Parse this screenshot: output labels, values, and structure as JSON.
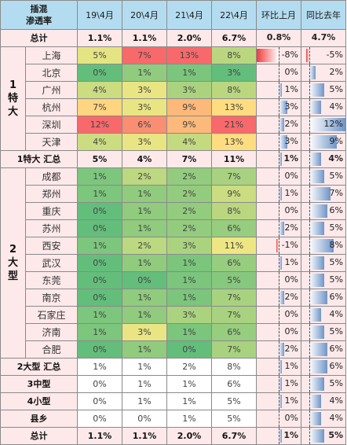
{
  "header": {
    "title_line1": "插混",
    "title_line2": "渗透率",
    "columns": [
      "19\\4月",
      "20\\4月",
      "21\\4月",
      "22\\4月",
      "环比上月",
      "同比去年"
    ]
  },
  "rows": [
    {
      "group": "",
      "label": "总计",
      "kind": "total",
      "values": [
        "1.1%",
        "1.1%",
        "2.0%",
        "6.7%"
      ],
      "mom": "0.8%",
      "yoy": "4.7%",
      "mom_num": 0.8,
      "yoy_num": 4.7
    },
    {
      "group": "1特大",
      "label": "上海",
      "kind": "city",
      "values": [
        "5%",
        "7%",
        "13%",
        "8%"
      ],
      "mom": "-8%",
      "yoy": "-5%",
      "mom_num": -8,
      "yoy_num": -5
    },
    {
      "group": "1特大",
      "label": "北京",
      "kind": "city",
      "values": [
        "0%",
        "1%",
        "1%",
        "3%"
      ],
      "mom": "0%",
      "yoy": "2%",
      "mom_num": 0,
      "yoy_num": 2
    },
    {
      "group": "1特大",
      "label": "广州",
      "kind": "city",
      "values": [
        "4%",
        "3%",
        "3%",
        "8%"
      ],
      "mom": "1%",
      "yoy": "5%",
      "mom_num": 1,
      "yoy_num": 5
    },
    {
      "group": "1特大",
      "label": "杭州",
      "kind": "city",
      "values": [
        "7%",
        "3%",
        "9%",
        "13%"
      ],
      "mom": "3%",
      "yoy": "4%",
      "mom_num": 3,
      "yoy_num": 4
    },
    {
      "group": "1特大",
      "label": "深圳",
      "kind": "city",
      "values": [
        "12%",
        "6%",
        "9%",
        "21%"
      ],
      "mom": "2%",
      "yoy": "12%",
      "mom_num": 2,
      "yoy_num": 12
    },
    {
      "group": "1特大",
      "label": "天津",
      "kind": "city",
      "values": [
        "4%",
        "3%",
        "4%",
        "13%"
      ],
      "mom": "3%",
      "yoy": "9%",
      "mom_num": 3,
      "yoy_num": 9
    },
    {
      "group": "",
      "label": "1特大 汇总",
      "kind": "summary",
      "values": [
        "5%",
        "4%",
        "7%",
        "11%"
      ],
      "mom": "1%",
      "yoy": "4%",
      "mom_num": 1,
      "yoy_num": 4
    },
    {
      "group": "2大型",
      "label": "成都",
      "kind": "city",
      "values": [
        "1%",
        "2%",
        "2%",
        "7%"
      ],
      "mom": "0%",
      "yoy": "5%",
      "mom_num": 0,
      "yoy_num": 5
    },
    {
      "group": "2大型",
      "label": "郑州",
      "kind": "city",
      "values": [
        "1%",
        "1%",
        "2%",
        "9%"
      ],
      "mom": "1%",
      "yoy": "7%",
      "mom_num": 1,
      "yoy_num": 7
    },
    {
      "group": "2大型",
      "label": "重庆",
      "kind": "city",
      "values": [
        "0%",
        "1%",
        "2%",
        "8%"
      ],
      "mom": "0%",
      "yoy": "6%",
      "mom_num": 0,
      "yoy_num": 6
    },
    {
      "group": "2大型",
      "label": "苏州",
      "kind": "city",
      "values": [
        "0%",
        "1%",
        "2%",
        "6%"
      ],
      "mom": "2%",
      "yoy": "5%",
      "mom_num": 2,
      "yoy_num": 5
    },
    {
      "group": "2大型",
      "label": "西安",
      "kind": "city",
      "values": [
        "1%",
        "2%",
        "3%",
        "11%"
      ],
      "mom": "-1%",
      "yoy": "8%",
      "mom_num": -1,
      "yoy_num": 8
    },
    {
      "group": "2大型",
      "label": "武汉",
      "kind": "city",
      "values": [
        "0%",
        "1%",
        "1%",
        "6%"
      ],
      "mom": "1%",
      "yoy": "5%",
      "mom_num": 1,
      "yoy_num": 5
    },
    {
      "group": "2大型",
      "label": "东莞",
      "kind": "city",
      "values": [
        "0%",
        "0%",
        "1%",
        "5%"
      ],
      "mom": "0%",
      "yoy": "5%",
      "mom_num": 0,
      "yoy_num": 5
    },
    {
      "group": "2大型",
      "label": "南京",
      "kind": "city",
      "values": [
        "0%",
        "1%",
        "1%",
        "7%"
      ],
      "mom": "2%",
      "yoy": "6%",
      "mom_num": 2,
      "yoy_num": 6
    },
    {
      "group": "2大型",
      "label": "石家庄",
      "kind": "city",
      "values": [
        "1%",
        "1%",
        "3%",
        "7%"
      ],
      "mom": "0%",
      "yoy": "4%",
      "mom_num": 0,
      "yoy_num": 4
    },
    {
      "group": "2大型",
      "label": "济南",
      "kind": "city",
      "values": [
        "1%",
        "3%",
        "1%",
        "6%"
      ],
      "mom": "0%",
      "yoy": "5%",
      "mom_num": 0,
      "yoy_num": 5
    },
    {
      "group": "2大型",
      "label": "合肥",
      "kind": "city",
      "values": [
        "0%",
        "1%",
        "0%",
        "7%"
      ],
      "mom": "2%",
      "yoy": "6%",
      "mom_num": 2,
      "yoy_num": 6
    },
    {
      "group": "",
      "label": "2大型 汇总",
      "kind": "summary2",
      "values": [
        "1%",
        "1%",
        "2%",
        "8%"
      ],
      "mom": "1%",
      "yoy": "6%",
      "mom_num": 1,
      "yoy_num": 6
    },
    {
      "group": "",
      "label": "3中型",
      "kind": "summary2",
      "values": [
        "0%",
        "1%",
        "1%",
        "6%"
      ],
      "mom": "1%",
      "yoy": "5%",
      "mom_num": 1,
      "yoy_num": 5
    },
    {
      "group": "",
      "label": "4小型",
      "kind": "summary2",
      "values": [
        "0%",
        "1%",
        "1%",
        "5%"
      ],
      "mom": "1%",
      "yoy": "4%",
      "mom_num": 1,
      "yoy_num": 4
    },
    {
      "group": "",
      "label": "县乡",
      "kind": "summary2",
      "values": [
        "0%",
        "0%",
        "1%",
        "5%"
      ],
      "mom": "0%",
      "yoy": "4%",
      "mom_num": 0,
      "yoy_num": 4
    },
    {
      "group": "",
      "label": "总计",
      "kind": "total",
      "values": [
        "1.1%",
        "1.1%",
        "2.0%",
        "6.7%"
      ],
      "mom": "1%",
      "yoy": "5%",
      "mom_num": 1,
      "yoy_num": 5
    }
  ],
  "group_labels": {
    "g1": "1\n特\n大",
    "g2": "2\n大\n型"
  },
  "colors": {
    "low": "#63be7b",
    "mid": "#ffeb84",
    "high": "#f8696b",
    "bar_pos": "#6f95c8",
    "bar_neg": "#f03a3a",
    "header_bg": "#b4dcf0",
    "row_bg": "#fde9ea"
  },
  "chart_data": {
    "type": "table",
    "title": "插混 渗透率",
    "columns": [
      "19\\4月",
      "20\\4月",
      "21\\4月",
      "22\\4月",
      "环比上月",
      "同比去年"
    ],
    "rows": [
      {
        "name": "总计",
        "values": [
          1.1,
          1.1,
          2.0,
          6.7,
          0.8,
          4.7
        ]
      },
      {
        "name": "上海",
        "values": [
          5,
          7,
          13,
          8,
          -8,
          -5
        ]
      },
      {
        "name": "北京",
        "values": [
          0,
          1,
          1,
          3,
          0,
          2
        ]
      },
      {
        "name": "广州",
        "values": [
          4,
          3,
          3,
          8,
          1,
          5
        ]
      },
      {
        "name": "杭州",
        "values": [
          7,
          3,
          9,
          13,
          3,
          4
        ]
      },
      {
        "name": "深圳",
        "values": [
          12,
          6,
          9,
          21,
          2,
          12
        ]
      },
      {
        "name": "天津",
        "values": [
          4,
          3,
          4,
          13,
          3,
          9
        ]
      },
      {
        "name": "1特大 汇总",
        "values": [
          5,
          4,
          7,
          11,
          1,
          4
        ]
      },
      {
        "name": "成都",
        "values": [
          1,
          2,
          2,
          7,
          0,
          5
        ]
      },
      {
        "name": "郑州",
        "values": [
          1,
          1,
          2,
          9,
          1,
          7
        ]
      },
      {
        "name": "重庆",
        "values": [
          0,
          1,
          2,
          8,
          0,
          6
        ]
      },
      {
        "name": "苏州",
        "values": [
          0,
          1,
          2,
          6,
          2,
          5
        ]
      },
      {
        "name": "西安",
        "values": [
          1,
          2,
          3,
          11,
          -1,
          8
        ]
      },
      {
        "name": "武汉",
        "values": [
          0,
          1,
          1,
          6,
          1,
          5
        ]
      },
      {
        "name": "东莞",
        "values": [
          0,
          0,
          1,
          5,
          0,
          5
        ]
      },
      {
        "name": "南京",
        "values": [
          0,
          1,
          1,
          7,
          2,
          6
        ]
      },
      {
        "name": "石家庄",
        "values": [
          1,
          1,
          3,
          7,
          0,
          4
        ]
      },
      {
        "name": "济南",
        "values": [
          1,
          3,
          1,
          6,
          0,
          5
        ]
      },
      {
        "name": "合肥",
        "values": [
          0,
          1,
          0,
          7,
          2,
          6
        ]
      },
      {
        "name": "2大型 汇总",
        "values": [
          1,
          1,
          2,
          8,
          1,
          6
        ]
      },
      {
        "name": "3中型",
        "values": [
          0,
          1,
          1,
          6,
          1,
          5
        ]
      },
      {
        "name": "4小型",
        "values": [
          0,
          1,
          1,
          5,
          1,
          4
        ]
      },
      {
        "name": "县乡",
        "values": [
          0,
          0,
          1,
          5,
          0,
          4
        ]
      },
      {
        "name": "总计",
        "values": [
          1.1,
          1.1,
          2.0,
          6.7,
          1,
          5
        ]
      }
    ]
  }
}
